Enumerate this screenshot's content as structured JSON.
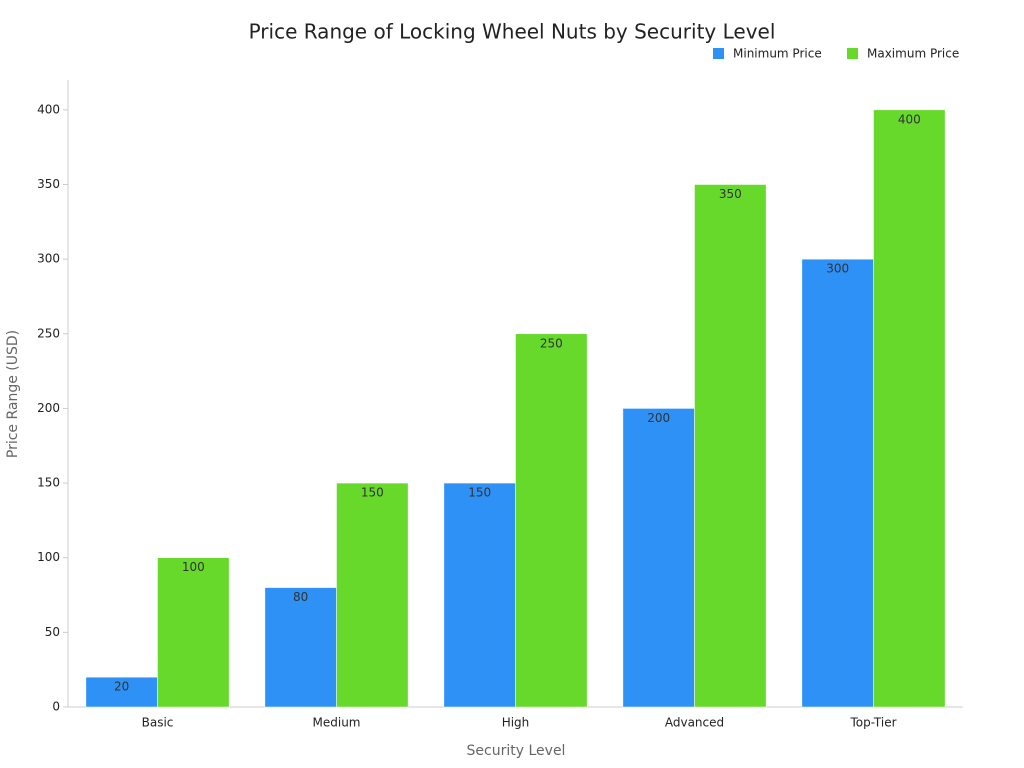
{
  "chart_data": {
    "type": "grouped-bar",
    "title": "Price Range of Locking Wheel Nuts by Security Level",
    "x_label": "Security Level",
    "y_label": "Price Range (USD)",
    "categories": [
      "Basic",
      "Medium",
      "High",
      "Advanced",
      "Top-Tier"
    ],
    "series": [
      {
        "name": "Minimum Price",
        "color": "#2e91f5",
        "values": [
          20,
          80,
          150,
          200,
          300
        ]
      },
      {
        "name": "Maximum Price",
        "color": "#66d92a",
        "values": [
          100,
          150,
          250,
          350,
          400
        ]
      }
    ],
    "ylim": [
      0,
      420
    ],
    "yticks": [
      0,
      50,
      100,
      150,
      200,
      250,
      300,
      350,
      400
    ],
    "grid": false,
    "legend": "top-right"
  }
}
